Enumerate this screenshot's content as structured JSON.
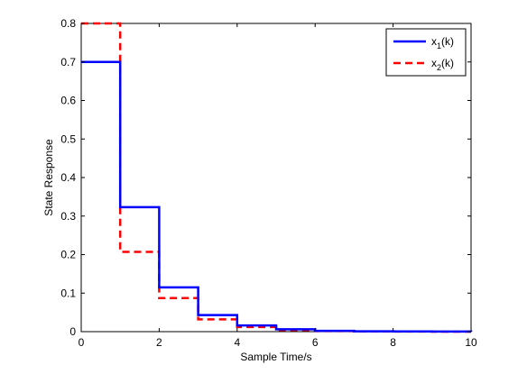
{
  "chart_data": {
    "type": "line",
    "step": true,
    "xlabel": "Sample Time/s",
    "ylabel": "State Response",
    "xlim": [
      0,
      10
    ],
    "ylim": [
      0,
      0.8
    ],
    "xticks": [
      "0",
      "2",
      "4",
      "6",
      "8",
      "10"
    ],
    "yticks": [
      "0",
      "0.1",
      "0.2",
      "0.3",
      "0.4",
      "0.5",
      "0.6",
      "0.7",
      "0.8"
    ],
    "grid": false,
    "legend_position": "top-right",
    "series": [
      {
        "name": "x_1(k)",
        "label_main": "x",
        "label_sub": "1",
        "label_tail": "(k)",
        "color": "#0000ff",
        "style": "solid",
        "x": [
          0,
          1,
          2,
          3,
          4,
          5,
          6,
          7,
          8,
          9,
          10
        ],
        "y": [
          0.7,
          0.323,
          0.115,
          0.043,
          0.016,
          0.006,
          0.002,
          0.001,
          0.0005,
          0.0002,
          0.0001
        ]
      },
      {
        "name": "x_2(k)",
        "label_main": "x",
        "label_sub": "2",
        "label_tail": "(k)",
        "color": "#ff0000",
        "style": "dashed",
        "x": [
          0,
          1,
          2,
          3,
          4,
          5,
          6,
          7,
          8,
          9,
          10
        ],
        "y": [
          0.8,
          0.207,
          0.087,
          0.032,
          0.012,
          0.004,
          0.0015,
          0.0006,
          0.0002,
          0.0001,
          0.0
        ]
      }
    ]
  }
}
